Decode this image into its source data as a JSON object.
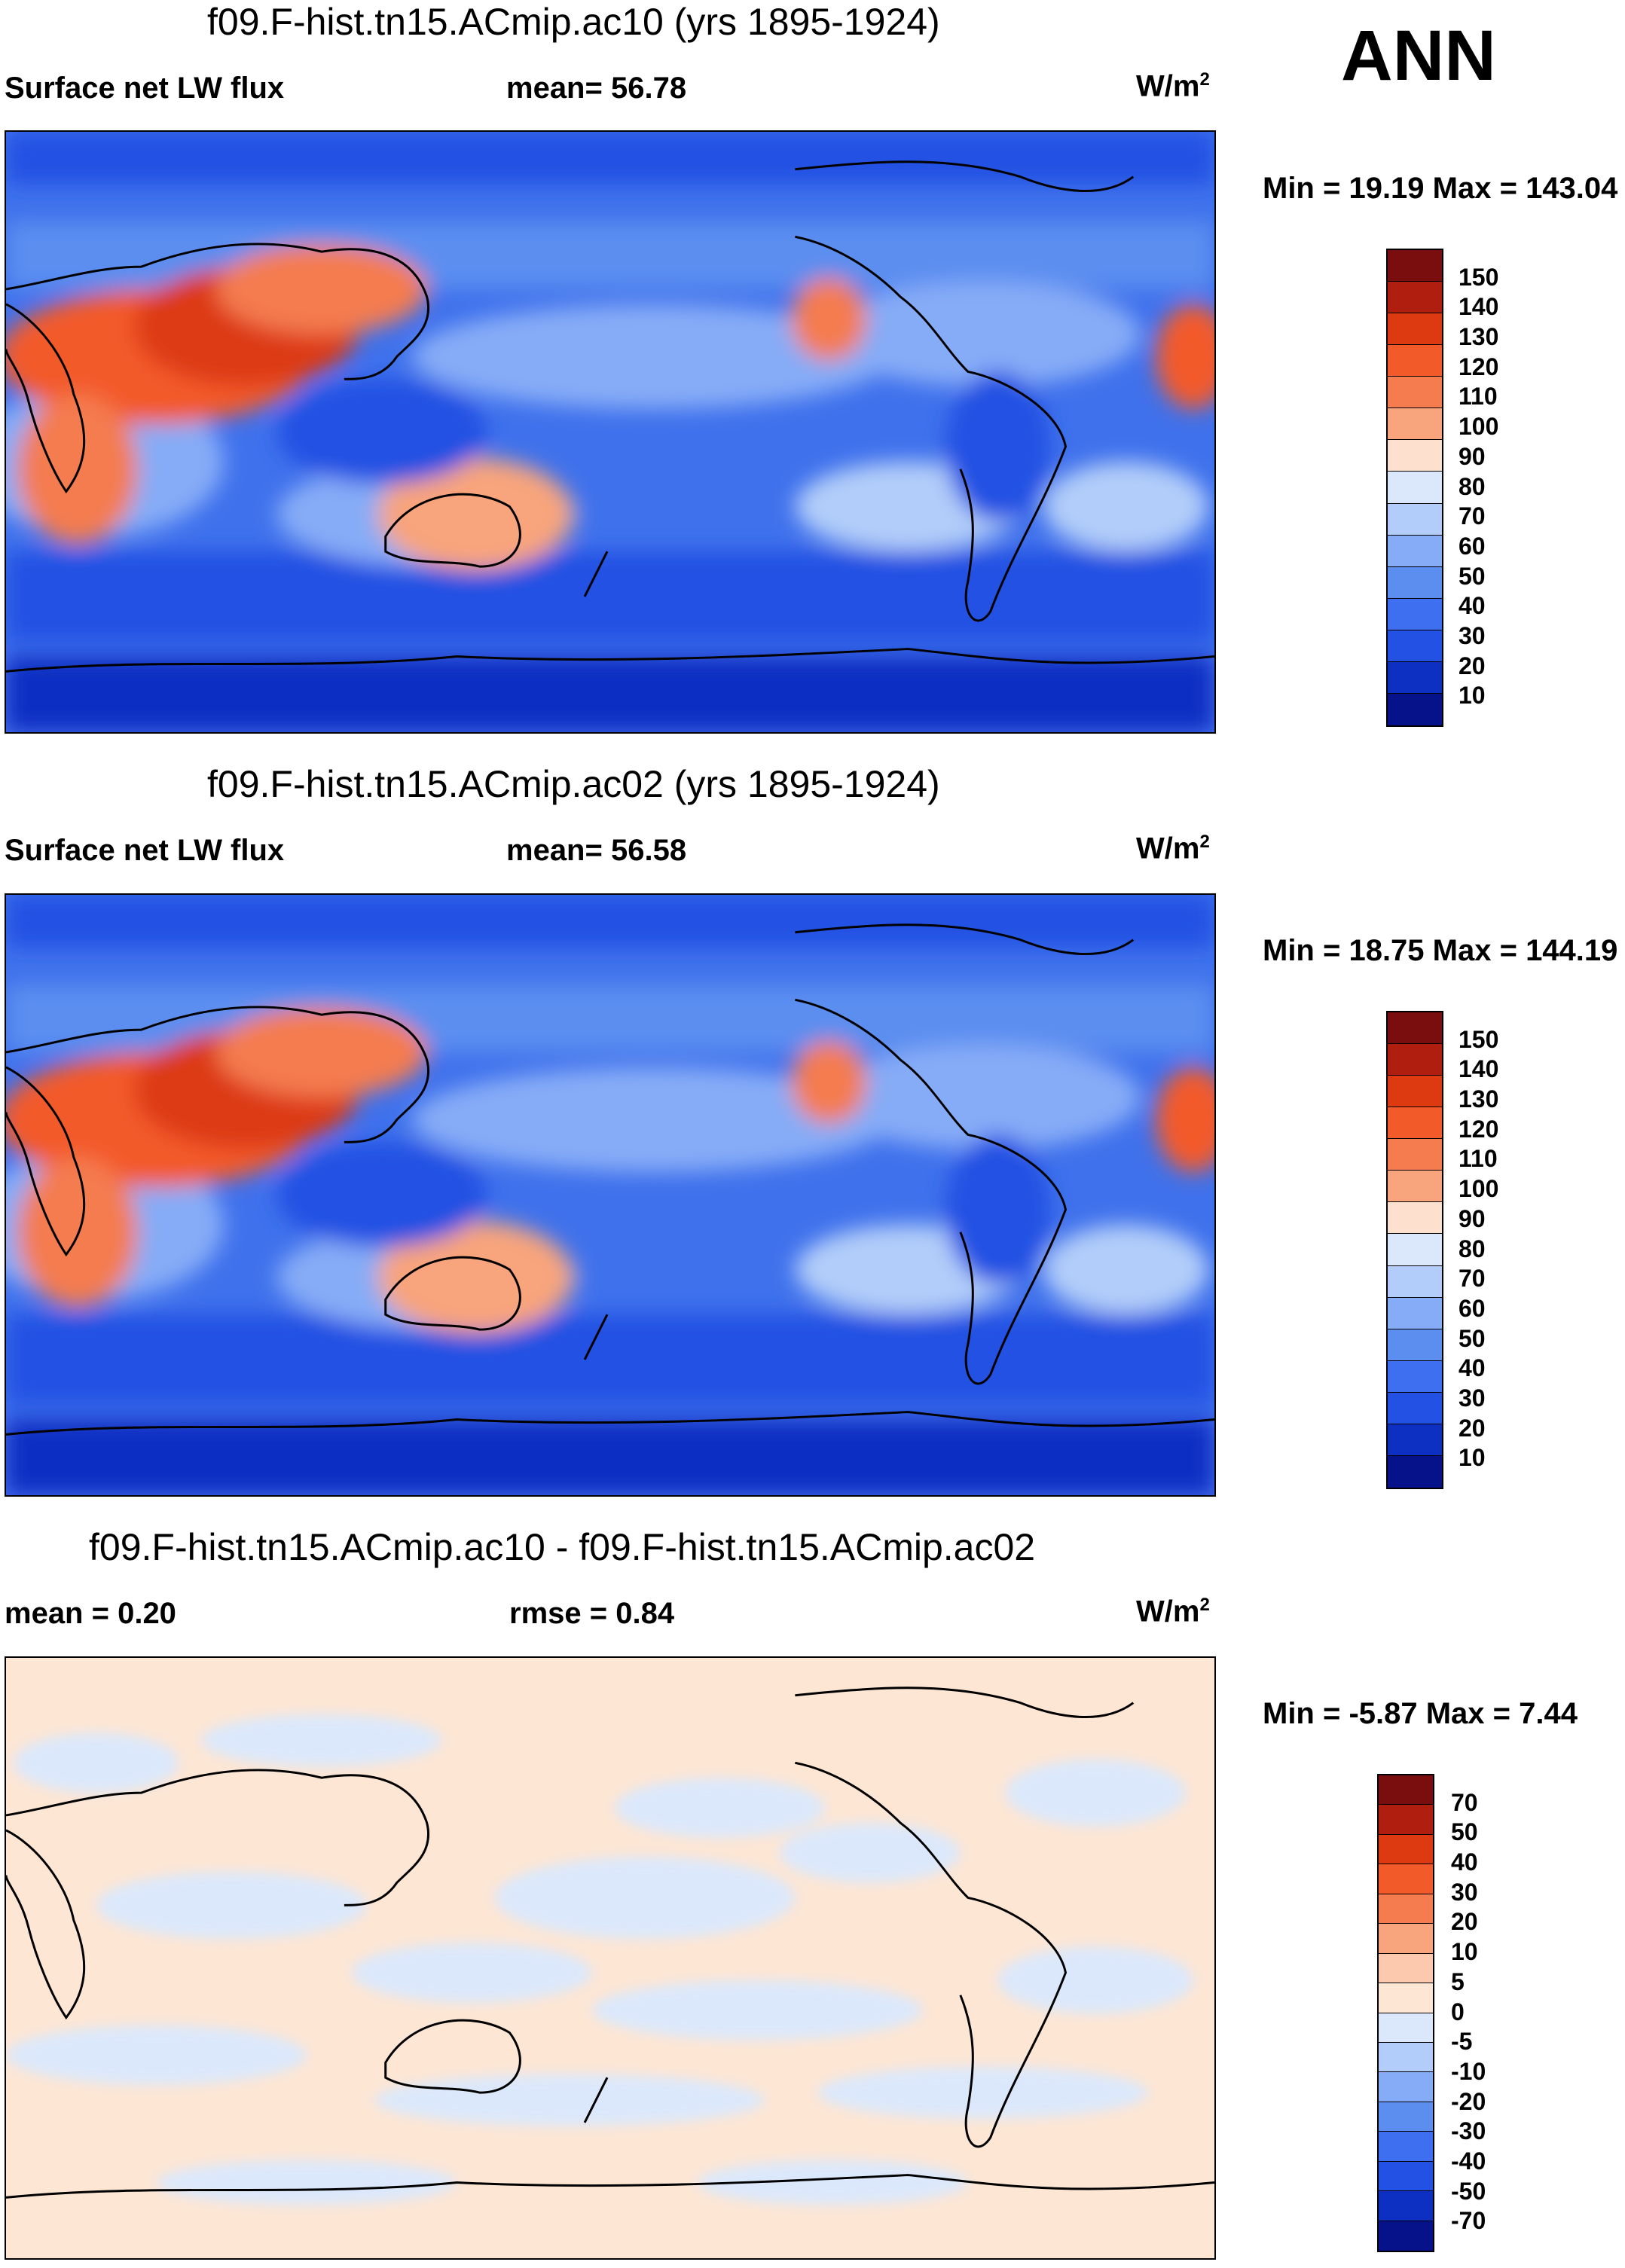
{
  "season": "ANN",
  "units_base": "W/m",
  "units_exp": "2",
  "panels": [
    {
      "title": "f09.F-hist.tn15.ACmip.ac10 (yrs 1895-1924)",
      "variable": "Surface net LW flux",
      "stat_label": "mean=  56.78",
      "minmax": "Min =  19.19 Max = 143.04"
    },
    {
      "title": "f09.F-hist.tn15.ACmip.ac02 (yrs 1895-1924)",
      "variable": "Surface net LW flux",
      "stat_label": "mean=  56.58",
      "minmax": "Min =  18.75 Max = 144.19"
    },
    {
      "title": "f09.F-hist.tn15.ACmip.ac10 - f09.F-hist.tn15.ACmip.ac02",
      "variable": "mean =   0.20",
      "stat_label": "rmse =   0.84",
      "minmax": "Min =  -5.87 Max =   7.44"
    }
  ],
  "colors": {
    "abs_scale": [
      "#7a0d0d",
      "#b01e10",
      "#dd3a12",
      "#f35a2a",
      "#f47c4f",
      "#f8a47c",
      "#fde0cd",
      "#dbe8fb",
      "#b2cdf9",
      "#86acf7",
      "#5c8ef0",
      "#3d6ff0",
      "#2251e3",
      "#0d2fc2",
      "#061289"
    ],
    "diff_scale": [
      "#7a0d0d",
      "#b01e10",
      "#dd3a12",
      "#f35a2a",
      "#f47c4f",
      "#f8a47c",
      "#fcc9ae",
      "#fde6d4",
      "#dbe8fb",
      "#b2cdf9",
      "#86acf7",
      "#5c8ef0",
      "#3d6ff0",
      "#2251e3",
      "#0d2fc2",
      "#061289"
    ],
    "ocean_base": "#3f71ec",
    "diff_base": "#fde6d4",
    "diff_alt": "#dbe8fb"
  },
  "chart_data": [
    {
      "type": "heatmap",
      "title": "f09.F-hist.tn15.ACmip.ac10 (yrs 1895-1924)",
      "subtitle_left": "Surface net LW flux",
      "subtitle_center": "mean=  56.78",
      "units": "W/m2",
      "min": 19.19,
      "max": 143.04,
      "contour_levels": [
        150,
        140,
        130,
        120,
        110,
        100,
        90,
        80,
        70,
        60,
        50,
        40,
        30,
        20,
        10
      ]
    },
    {
      "type": "heatmap",
      "title": "f09.F-hist.tn15.ACmip.ac02 (yrs 1895-1924)",
      "subtitle_left": "Surface net LW flux",
      "subtitle_center": "mean=  56.58",
      "units": "W/m2",
      "min": 18.75,
      "max": 144.19,
      "contour_levels": [
        150,
        140,
        130,
        120,
        110,
        100,
        90,
        80,
        70,
        60,
        50,
        40,
        30,
        20,
        10
      ]
    },
    {
      "type": "heatmap",
      "title": "f09.F-hist.tn15.ACmip.ac10 - f09.F-hist.tn15.ACmip.ac02",
      "subtitle_left": "mean =   0.20",
      "subtitle_center": "rmse =   0.84",
      "units": "W/m2",
      "min": -5.87,
      "max": 7.44,
      "contour_levels": [
        70,
        50,
        40,
        30,
        20,
        10,
        5,
        0,
        -5,
        -10,
        -20,
        -30,
        -40,
        -50,
        -70
      ]
    }
  ]
}
